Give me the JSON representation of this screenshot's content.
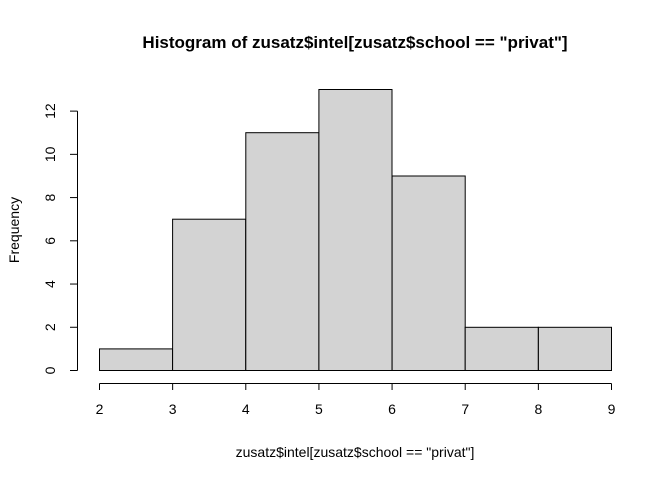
{
  "chart_data": {
    "type": "bar",
    "title": "Histogram of zusatz$intel[zusatz$school == \"privat\"]",
    "xlabel": "zusatz$intel[zusatz$school == \"privat\"]",
    "ylabel": "Frequency",
    "bins": [
      {
        "from": 2,
        "to": 3,
        "count": 1
      },
      {
        "from": 3,
        "to": 4,
        "count": 7
      },
      {
        "from": 4,
        "to": 5,
        "count": 11
      },
      {
        "from": 5,
        "to": 6,
        "count": 13
      },
      {
        "from": 6,
        "to": 7,
        "count": 9
      },
      {
        "from": 7,
        "to": 8,
        "count": 2
      },
      {
        "from": 8,
        "to": 9,
        "count": 2
      }
    ],
    "xlim": [
      2,
      9
    ],
    "ylim": [
      0,
      13
    ],
    "x_ticks": [
      "2",
      "3",
      "4",
      "5",
      "6",
      "7",
      "8",
      "9"
    ],
    "y_ticks": [
      "0",
      "2",
      "4",
      "6",
      "8",
      "10",
      "12"
    ],
    "grid": false,
    "bar_color": "#d3d3d3",
    "border_color": "#000000"
  }
}
